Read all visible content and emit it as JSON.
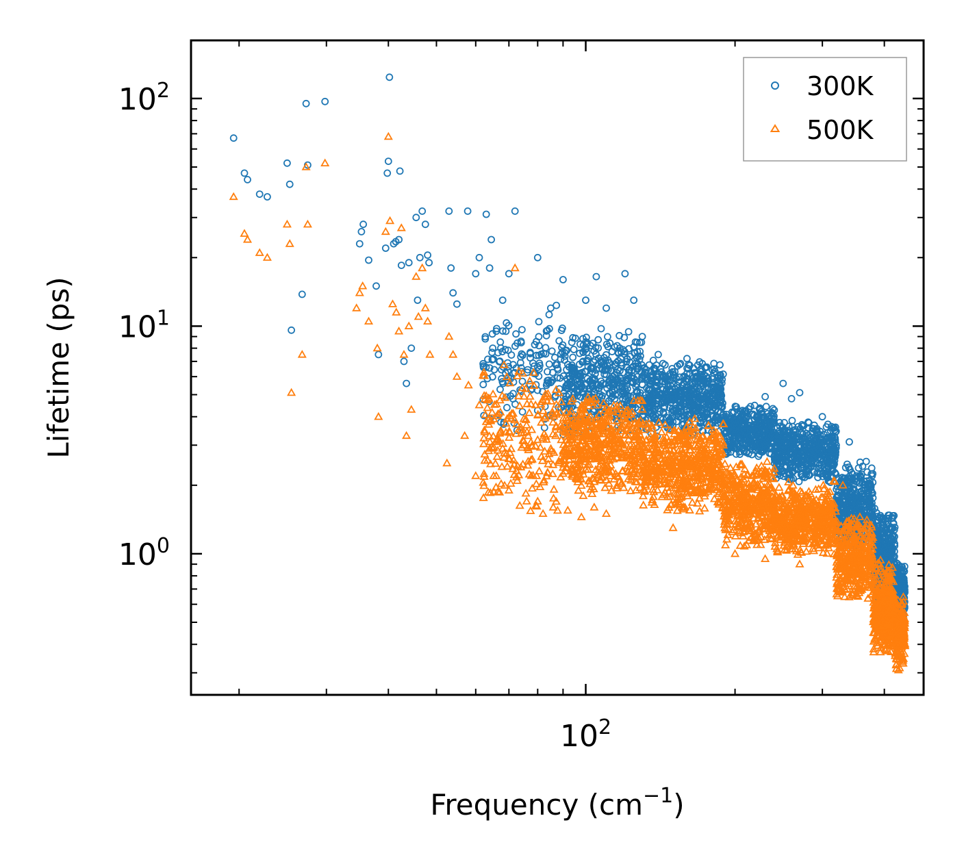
{
  "chart_data": {
    "type": "scatter",
    "title": "",
    "xlabel": "Frequency (cm",
    "xlabel_sup": "−1",
    "xlabel_suffix": ")",
    "ylabel": "Lifetime (ps)",
    "xscale": "log",
    "yscale": "log",
    "xlim": [
      16,
      480
    ],
    "ylim": [
      0.24,
      180
    ],
    "x_ticks": [
      {
        "value": 100,
        "base": "10",
        "exp": "2"
      }
    ],
    "y_ticks": [
      {
        "value": 1,
        "base": "10",
        "exp": "0"
      },
      {
        "value": 10,
        "base": "10",
        "exp": "1"
      },
      {
        "value": 100,
        "base": "10",
        "exp": "2"
      }
    ],
    "legend_position": "top-right",
    "colors": {
      "300K": "#1f77b4",
      "500K": "#ff7f0e"
    },
    "series": [
      {
        "name": "300K",
        "marker": "circle",
        "color": "#1f77b4",
        "points": [
          [
            19.5,
            67
          ],
          [
            20.5,
            47
          ],
          [
            20.8,
            44
          ],
          [
            22,
            38
          ],
          [
            22.8,
            37
          ],
          [
            25,
            52
          ],
          [
            25.3,
            42
          ],
          [
            25.5,
            9.6
          ],
          [
            26.8,
            13.8
          ],
          [
            27.3,
            95
          ],
          [
            27.5,
            51
          ],
          [
            29.8,
            97
          ],
          [
            35,
            23
          ],
          [
            35.3,
            26
          ],
          [
            35.6,
            28
          ],
          [
            36.5,
            19.5
          ],
          [
            37.8,
            15
          ],
          [
            38.2,
            7.5
          ],
          [
            39.5,
            22
          ],
          [
            39.8,
            47
          ],
          [
            40,
            53
          ],
          [
            40.2,
            124
          ],
          [
            41,
            23
          ],
          [
            41.4,
            23.5
          ],
          [
            42,
            24
          ],
          [
            42.2,
            48
          ],
          [
            42.5,
            18.5
          ],
          [
            43,
            7
          ],
          [
            43.5,
            5.6
          ],
          [
            44,
            19
          ],
          [
            44.5,
            8
          ],
          [
            45.5,
            30
          ],
          [
            45.8,
            13
          ],
          [
            46.3,
            20
          ],
          [
            46.8,
            32
          ],
          [
            47.5,
            28
          ],
          [
            48,
            20.5
          ],
          [
            48.3,
            19
          ],
          [
            53,
            32
          ],
          [
            53.5,
            18
          ],
          [
            54,
            14
          ],
          [
            55,
            12.5
          ],
          [
            57.8,
            32
          ],
          [
            60,
            17
          ],
          [
            61,
            20
          ],
          [
            63,
            31
          ],
          [
            64,
            18
          ],
          [
            64.5,
            24
          ],
          [
            66,
            9.5
          ],
          [
            68,
            13
          ],
          [
            70,
            17
          ],
          [
            72,
            32
          ],
          [
            80,
            20
          ],
          [
            85,
            12
          ],
          [
            90,
            16
          ],
          [
            100,
            13
          ],
          [
            105,
            16.5
          ],
          [
            110,
            12
          ],
          [
            120,
            17
          ],
          [
            125,
            13
          ],
          [
            130,
            9
          ],
          [
            140,
            7.5
          ],
          [
            160,
            7.2
          ],
          [
            180,
            6
          ],
          [
            210,
            4.2
          ],
          [
            230,
            4.9
          ],
          [
            250,
            5.6
          ],
          [
            260,
            4.8
          ],
          [
            270,
            5.1
          ],
          [
            300,
            4
          ],
          [
            320,
            3
          ],
          [
            340,
            3.1
          ],
          [
            352,
            2.2
          ]
        ],
        "bands": [
          {
            "x_from": 62,
            "x_to": 90,
            "n": 160,
            "lo": 3.2,
            "hi": 13
          },
          {
            "x_from": 90,
            "x_to": 130,
            "n": 420,
            "lo": 3.2,
            "hi": 10
          },
          {
            "x_from": 130,
            "x_to": 190,
            "n": 560,
            "lo": 3.2,
            "hi": 7.2
          },
          {
            "x_from": 190,
            "x_to": 240,
            "n": 380,
            "lo": 2.6,
            "hi": 4.6
          },
          {
            "x_from": 240,
            "x_to": 320,
            "n": 520,
            "lo": 2.0,
            "hi": 3.9
          },
          {
            "x_from": 320,
            "x_to": 380,
            "n": 380,
            "lo": 1.0,
            "hi": 2.6
          },
          {
            "x_from": 380,
            "x_to": 420,
            "n": 340,
            "lo": 0.55,
            "hi": 1.6
          },
          {
            "x_from": 420,
            "x_to": 440,
            "n": 180,
            "lo": 0.5,
            "hi": 0.95
          }
        ]
      },
      {
        "name": "500K",
        "marker": "triangle",
        "color": "#ff7f0e",
        "points": [
          [
            19.5,
            37
          ],
          [
            20.5,
            25.5
          ],
          [
            20.8,
            24
          ],
          [
            22,
            21
          ],
          [
            22.8,
            20
          ],
          [
            25,
            28
          ],
          [
            25.3,
            23
          ],
          [
            25.5,
            5.1
          ],
          [
            26.8,
            7.5
          ],
          [
            27.3,
            50
          ],
          [
            27.5,
            28
          ],
          [
            29.8,
            52
          ],
          [
            34.5,
            12
          ],
          [
            35,
            14
          ],
          [
            35.5,
            15
          ],
          [
            36.5,
            10.5
          ],
          [
            38,
            8
          ],
          [
            38.2,
            4
          ],
          [
            39.5,
            26
          ],
          [
            40,
            68
          ],
          [
            40.3,
            29
          ],
          [
            40.8,
            12.5
          ],
          [
            41.5,
            11.5
          ],
          [
            42,
            9.5
          ],
          [
            42.5,
            27
          ],
          [
            43,
            7.5
          ],
          [
            43.5,
            3.3
          ],
          [
            44,
            10
          ],
          [
            44.5,
            4.3
          ],
          [
            45.5,
            16.5
          ],
          [
            46,
            11
          ],
          [
            46.8,
            18
          ],
          [
            47.5,
            12
          ],
          [
            48,
            10.5
          ],
          [
            48.5,
            7.5
          ],
          [
            52.5,
            2.5
          ],
          [
            53,
            9
          ],
          [
            54,
            7.5
          ],
          [
            55,
            6
          ],
          [
            57,
            3.3
          ],
          [
            58,
            5.5
          ],
          [
            60,
            2.2
          ],
          [
            61,
            4.5
          ],
          [
            63,
            3.8
          ],
          [
            64,
            2.9
          ],
          [
            66,
            2.2
          ],
          [
            68,
            2.9
          ],
          [
            70,
            1.9
          ],
          [
            72,
            18
          ],
          [
            74,
            2.4
          ],
          [
            76,
            1.7
          ],
          [
            78,
            2.6
          ],
          [
            80,
            1.7
          ],
          [
            82,
            1.5
          ],
          [
            86,
            1.6
          ],
          [
            92,
            1.55
          ],
          [
            98,
            1.45
          ],
          [
            104,
            1.6
          ],
          [
            110,
            1.5
          ],
          [
            150,
            1.3
          ],
          [
            200,
            1
          ],
          [
            230,
            0.95
          ],
          [
            270,
            0.9
          ],
          [
            300,
            1.6
          ],
          [
            330,
            2
          ]
        ],
        "bands": [
          {
            "x_from": 62,
            "x_to": 90,
            "n": 220,
            "lo": 1.4,
            "hi": 7.2
          },
          {
            "x_from": 90,
            "x_to": 130,
            "n": 520,
            "lo": 1.7,
            "hi": 5.2
          },
          {
            "x_from": 130,
            "x_to": 190,
            "n": 600,
            "lo": 1.5,
            "hi": 4
          },
          {
            "x_from": 190,
            "x_to": 240,
            "n": 420,
            "lo": 1.05,
            "hi": 2.6
          },
          {
            "x_from": 240,
            "x_to": 320,
            "n": 520,
            "lo": 0.95,
            "hi": 2.1
          },
          {
            "x_from": 320,
            "x_to": 380,
            "n": 380,
            "lo": 0.6,
            "hi": 1.5
          },
          {
            "x_from": 380,
            "x_to": 420,
            "n": 360,
            "lo": 0.35,
            "hi": 0.95
          },
          {
            "x_from": 420,
            "x_to": 440,
            "n": 200,
            "lo": 0.3,
            "hi": 0.65
          }
        ]
      }
    ]
  }
}
